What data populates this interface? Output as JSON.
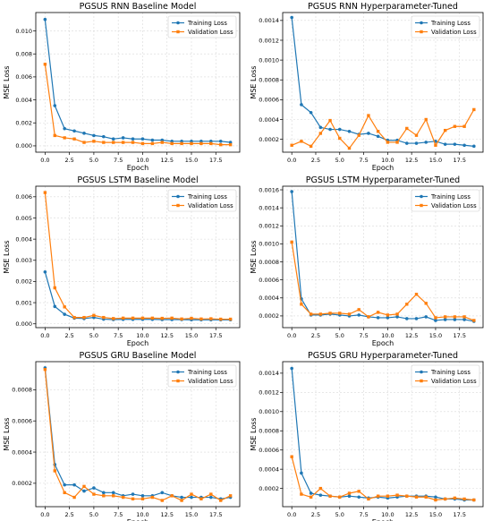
{
  "chart_data": [
    {
      "type": "line",
      "title": "PGSUS RNN Baseline Model",
      "xlabel": "Epoch",
      "ylabel": "MSE Loss",
      "xlim": [
        -0.95,
        19.95
      ],
      "ylim": [
        -0.00055,
        0.0116
      ],
      "xticks": [
        0,
        2.5,
        5,
        7.5,
        10,
        12.5,
        15,
        17.5
      ],
      "xtick_labels": [
        "0.0",
        "2.5",
        "5.0",
        "7.5",
        "10.0",
        "12.5",
        "15.0",
        "17.5"
      ],
      "yticks": [
        0,
        0.002,
        0.004,
        0.006,
        0.008,
        0.01
      ],
      "ytick_labels": [
        "0.000",
        "0.002",
        "0.004",
        "0.006",
        "0.008",
        "0.010"
      ],
      "grid": true,
      "legend": "top-right",
      "x": [
        0,
        1,
        2,
        3,
        4,
        5,
        6,
        7,
        8,
        9,
        10,
        11,
        12,
        13,
        14,
        15,
        16,
        17,
        18,
        19
      ],
      "series": [
        {
          "name": "Training Loss",
          "color": "#1f77b4",
          "marker": "circle",
          "values": [
            0.011,
            0.0035,
            0.0015,
            0.0013,
            0.0011,
            0.0009,
            0.0008,
            0.0006,
            0.0007,
            0.0006,
            0.0006,
            0.0005,
            0.0005,
            0.0004,
            0.0004,
            0.0004,
            0.0004,
            0.0004,
            0.0004,
            0.0003
          ]
        },
        {
          "name": "Validation Loss",
          "color": "#ff7f0e",
          "marker": "square",
          "values": [
            0.0071,
            0.0009,
            0.0007,
            0.0006,
            0.0003,
            0.0004,
            0.0003,
            0.0003,
            0.0003,
            0.0003,
            0.0002,
            0.0002,
            0.0003,
            0.0002,
            0.0002,
            0.0002,
            0.0002,
            0.0002,
            0.0001,
            0.0001
          ]
        }
      ]
    },
    {
      "type": "line",
      "title": "PGSUS RNN Hyperparameter-Tuned",
      "xlabel": "Epoch",
      "ylabel": "MSE Loss",
      "xlim": [
        -0.95,
        19.95
      ],
      "ylim": [
        7e-05,
        0.00148
      ],
      "xticks": [
        0,
        2.5,
        5,
        7.5,
        10,
        12.5,
        15,
        17.5
      ],
      "xtick_labels": [
        "0.0",
        "2.5",
        "5.0",
        "7.5",
        "10.0",
        "12.5",
        "15.0",
        "17.5"
      ],
      "yticks": [
        0.0002,
        0.0004,
        0.0006,
        0.0008,
        0.001,
        0.0012,
        0.0014
      ],
      "ytick_labels": [
        "0.0002",
        "0.0004",
        "0.0006",
        "0.0008",
        "0.0010",
        "0.0012",
        "0.0014"
      ],
      "grid": true,
      "legend": "top-right",
      "x": [
        0,
        1,
        2,
        3,
        4,
        5,
        6,
        7,
        8,
        9,
        10,
        11,
        12,
        13,
        14,
        15,
        16,
        17,
        18,
        19
      ],
      "series": [
        {
          "name": "Training Loss",
          "color": "#1f77b4",
          "marker": "circle",
          "values": [
            0.00143,
            0.00055,
            0.00047,
            0.00032,
            0.0003,
            0.0003,
            0.00028,
            0.00025,
            0.00026,
            0.00023,
            0.00019,
            0.00019,
            0.00016,
            0.00016,
            0.00017,
            0.00018,
            0.00015,
            0.00015,
            0.00014,
            0.00013
          ]
        },
        {
          "name": "Validation Loss",
          "color": "#ff7f0e",
          "marker": "square",
          "values": [
            0.00014,
            0.00018,
            0.00013,
            0.00026,
            0.00039,
            0.00021,
            0.00011,
            0.00024,
            0.00044,
            0.00028,
            0.00017,
            0.00017,
            0.00031,
            0.00024,
            0.0004,
            0.00014,
            0.00029,
            0.00033,
            0.00033,
            0.0005
          ]
        }
      ]
    },
    {
      "type": "line",
      "title": "PGSUS LSTM Baseline Model",
      "xlabel": "Epoch",
      "ylabel": "MSE Loss",
      "xlim": [
        -0.95,
        19.95
      ],
      "ylim": [
        -0.00018,
        0.0065
      ],
      "xticks": [
        0,
        2.5,
        5,
        7.5,
        10,
        12.5,
        15,
        17.5
      ],
      "xtick_labels": [
        "0.0",
        "2.5",
        "5.0",
        "7.5",
        "10.0",
        "12.5",
        "15.0",
        "17.5"
      ],
      "yticks": [
        0,
        0.001,
        0.002,
        0.003,
        0.004,
        0.005,
        0.006
      ],
      "ytick_labels": [
        "0.000",
        "0.001",
        "0.002",
        "0.003",
        "0.004",
        "0.005",
        "0.006"
      ],
      "grid": true,
      "legend": "top-right",
      "x": [
        0,
        1,
        2,
        3,
        4,
        5,
        6,
        7,
        8,
        9,
        10,
        11,
        12,
        13,
        14,
        15,
        16,
        17,
        18,
        19
      ],
      "series": [
        {
          "name": "Training Loss",
          "color": "#1f77b4",
          "marker": "circle",
          "values": [
            0.00245,
            0.00082,
            0.00045,
            0.00027,
            0.00025,
            0.0003,
            0.00022,
            0.0002,
            0.00021,
            0.00021,
            0.00021,
            0.00021,
            0.0002,
            0.0002,
            0.0002,
            0.00019,
            0.00019,
            0.00019,
            0.00019,
            0.00019
          ]
        },
        {
          "name": "Validation Loss",
          "color": "#ff7f0e",
          "marker": "square",
          "values": [
            0.0062,
            0.0017,
            0.0008,
            0.0003,
            0.0003,
            0.0004,
            0.0003,
            0.00025,
            0.00027,
            0.00027,
            0.00027,
            0.00027,
            0.00026,
            0.00027,
            0.00023,
            0.00026,
            0.00023,
            0.00024,
            0.00022,
            0.00022
          ]
        }
      ]
    },
    {
      "type": "line",
      "title": "PGSUS LSTM Hyperparameter-Tuned",
      "xlabel": "Epoch",
      "ylabel": "MSE Loss",
      "xlim": [
        -0.95,
        19.95
      ],
      "ylim": [
        7e-05,
        0.00164
      ],
      "xticks": [
        0,
        2.5,
        5,
        7.5,
        10,
        12.5,
        15,
        17.5
      ],
      "xtick_labels": [
        "0.0",
        "2.5",
        "5.0",
        "7.5",
        "10.0",
        "12.5",
        "15.0",
        "17.5"
      ],
      "yticks": [
        0.0002,
        0.0004,
        0.0006,
        0.0008,
        0.001,
        0.0012,
        0.0014,
        0.0016
      ],
      "ytick_labels": [
        "0.0002",
        "0.0004",
        "0.0006",
        "0.0008",
        "0.0010",
        "0.0012",
        "0.0014",
        "0.0016"
      ],
      "grid": true,
      "legend": "top-right",
      "x": [
        0,
        1,
        2,
        3,
        4,
        5,
        6,
        7,
        8,
        9,
        10,
        11,
        12,
        13,
        14,
        15,
        16,
        17,
        18,
        19
      ],
      "series": [
        {
          "name": "Training Loss",
          "color": "#1f77b4",
          "marker": "circle",
          "values": [
            0.00158,
            0.00039,
            0.00021,
            0.00021,
            0.00022,
            0.00021,
            0.0002,
            0.00021,
            0.00019,
            0.00018,
            0.00018,
            0.00019,
            0.00017,
            0.00017,
            0.00019,
            0.00015,
            0.00016,
            0.00016,
            0.00016,
            0.00014
          ]
        },
        {
          "name": "Validation Loss",
          "color": "#ff7f0e",
          "marker": "square",
          "values": [
            0.00102,
            0.00033,
            0.00022,
            0.00022,
            0.00023,
            0.00023,
            0.00022,
            0.00027,
            0.00019,
            0.00024,
            0.00021,
            0.00022,
            0.00033,
            0.00044,
            0.00034,
            0.00018,
            0.00019,
            0.00019,
            0.00019,
            0.00015
          ]
        }
      ]
    },
    {
      "type": "line",
      "title": "PGSUS GRU Baseline Model",
      "xlabel": "Epoch",
      "ylabel": "MSE Loss",
      "xlim": [
        -0.95,
        19.95
      ],
      "ylim": [
        5e-05,
        0.00098
      ],
      "xticks": [
        0,
        2.5,
        5,
        7.5,
        10,
        12.5,
        15,
        17.5
      ],
      "xtick_labels": [
        "0.0",
        "2.5",
        "5.0",
        "7.5",
        "10.0",
        "12.5",
        "15.0",
        "17.5"
      ],
      "yticks": [
        0.0002,
        0.0004,
        0.0006,
        0.0008
      ],
      "ytick_labels": [
        "0.0002",
        "0.0004",
        "0.0006",
        "0.0008"
      ],
      "grid": true,
      "legend": "top-right",
      "x": [
        0,
        1,
        2,
        3,
        4,
        5,
        6,
        7,
        8,
        9,
        10,
        11,
        12,
        13,
        14,
        15,
        16,
        17,
        18,
        19
      ],
      "series": [
        {
          "name": "Training Loss",
          "color": "#1f77b4",
          "marker": "circle",
          "values": [
            0.00094,
            0.00032,
            0.00019,
            0.00019,
            0.00015,
            0.00017,
            0.00014,
            0.00014,
            0.00012,
            0.00013,
            0.00012,
            0.00012,
            0.00014,
            0.00012,
            0.00011,
            0.00011,
            0.00011,
            0.00011,
            0.0001,
            0.00011
          ]
        },
        {
          "name": "Validation Loss",
          "color": "#ff7f0e",
          "marker": "square",
          "values": [
            0.00093,
            0.00028,
            0.00014,
            0.00011,
            0.00018,
            0.00013,
            0.00012,
            0.00012,
            0.00011,
            0.0001,
            0.0001,
            0.00011,
            9e-05,
            0.00012,
            9e-05,
            0.00013,
            0.0001,
            0.00013,
            9e-05,
            0.00012
          ]
        }
      ]
    },
    {
      "type": "line",
      "title": "PGSUS GRU Hyperparameter-Tuned",
      "xlabel": "Epoch",
      "ylabel": "MSE Loss",
      "xlim": [
        -0.95,
        19.95
      ],
      "ylim": [
        1e-05,
        0.00152
      ],
      "xticks": [
        0,
        2.5,
        5,
        7.5,
        10,
        12.5,
        15,
        17.5
      ],
      "xtick_labels": [
        "0.0",
        "2.5",
        "5.0",
        "7.5",
        "10.0",
        "12.5",
        "15.0",
        "17.5"
      ],
      "yticks": [
        0.0002,
        0.0004,
        0.0006,
        0.0008,
        0.001,
        0.0012,
        0.0014
      ],
      "ytick_labels": [
        "0.0002",
        "0.0004",
        "0.0006",
        "0.0008",
        "0.0010",
        "0.0012",
        "0.0014"
      ],
      "grid": true,
      "legend": "top-right",
      "x": [
        0,
        1,
        2,
        3,
        4,
        5,
        6,
        7,
        8,
        9,
        10,
        11,
        12,
        13,
        14,
        15,
        16,
        17,
        18,
        19
      ],
      "series": [
        {
          "name": "Training Loss",
          "color": "#1f77b4",
          "marker": "circle",
          "values": [
            0.00145,
            0.00036,
            0.00015,
            0.00013,
            0.00012,
            0.00011,
            0.00012,
            0.00011,
            0.0001,
            0.00011,
            0.0001,
            0.00011,
            0.00012,
            0.00012,
            0.00012,
            0.00011,
            9e-05,
            9e-05,
            8e-05,
            8e-05
          ]
        },
        {
          "name": "Validation Loss",
          "color": "#ff7f0e",
          "marker": "square",
          "values": [
            0.00053,
            0.00014,
            0.00011,
            0.0002,
            0.00012,
            0.00011,
            0.00015,
            0.00017,
            9e-05,
            0.00012,
            0.00012,
            0.00013,
            0.00012,
            0.00011,
            0.00011,
            8e-05,
            9e-05,
            0.0001,
            9e-05,
            8e-05
          ]
        }
      ]
    }
  ]
}
